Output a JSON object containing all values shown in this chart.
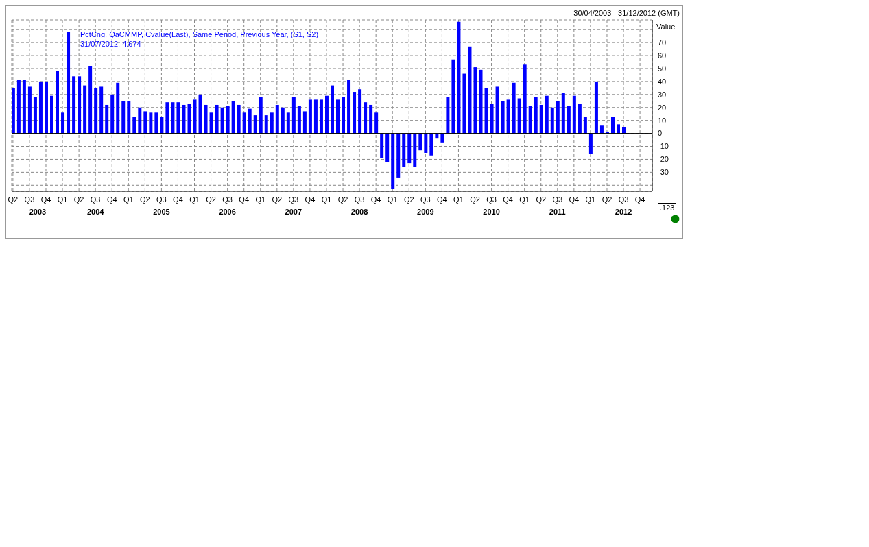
{
  "chart_data": {
    "type": "bar",
    "subtitle": "30/04/2003 - 31/12/2012 (GMT)",
    "ylabel": "Value",
    "x": [
      "2003-04",
      "2003-05",
      "2003-06",
      "2003-07",
      "2003-08",
      "2003-09",
      "2003-10",
      "2003-11",
      "2003-12",
      "2004-01",
      "2004-02",
      "2004-03",
      "2004-04",
      "2004-05",
      "2004-06",
      "2004-07",
      "2004-08",
      "2004-09",
      "2004-10",
      "2004-11",
      "2004-12",
      "2005-01",
      "2005-02",
      "2005-03",
      "2005-04",
      "2005-05",
      "2005-06",
      "2005-07",
      "2005-08",
      "2005-09",
      "2005-10",
      "2005-11",
      "2005-12",
      "2006-01",
      "2006-02",
      "2006-03",
      "2006-04",
      "2006-05",
      "2006-06",
      "2006-07",
      "2006-08",
      "2006-09",
      "2006-10",
      "2006-11",
      "2006-12",
      "2007-01",
      "2007-02",
      "2007-03",
      "2007-04",
      "2007-05",
      "2007-06",
      "2007-07",
      "2007-08",
      "2007-09",
      "2007-10",
      "2007-11",
      "2007-12",
      "2008-01",
      "2008-02",
      "2008-03",
      "2008-04",
      "2008-05",
      "2008-06",
      "2008-07",
      "2008-08",
      "2008-09",
      "2008-10",
      "2008-11",
      "2008-12",
      "2009-01",
      "2009-02",
      "2009-03",
      "2009-04",
      "2009-05",
      "2009-06",
      "2009-07",
      "2009-08",
      "2009-09",
      "2009-10",
      "2009-11",
      "2009-12",
      "2010-01",
      "2010-02",
      "2010-03",
      "2010-04",
      "2010-05",
      "2010-06",
      "2010-07",
      "2010-08",
      "2010-09",
      "2010-10",
      "2010-11",
      "2010-12",
      "2011-01",
      "2011-02",
      "2011-03",
      "2011-04",
      "2011-05",
      "2011-06",
      "2011-07",
      "2011-08",
      "2011-09",
      "2011-10",
      "2011-11",
      "2011-12",
      "2012-01",
      "2012-02",
      "2012-03",
      "2012-04",
      "2012-05",
      "2012-06",
      "2012-07"
    ],
    "series": [
      {
        "name": "PctCng, QaCMMP, Cvalue(Last), Same Period, Previous Year, (S1, S2)",
        "color": "#0000ff",
        "values": [
          35,
          41,
          41,
          36,
          28,
          40,
          40,
          29,
          48,
          16,
          78,
          44,
          44,
          37,
          52,
          35,
          36,
          22,
          30,
          39,
          25,
          25,
          13,
          20,
          17,
          16,
          16,
          13,
          24,
          24,
          24,
          22,
          23,
          26,
          30,
          22,
          16,
          22,
          20,
          21,
          25,
          22,
          16,
          19,
          14,
          28,
          14,
          16,
          22,
          20,
          16,
          28,
          21,
          17,
          26,
          26,
          26,
          29,
          37,
          26,
          28,
          41,
          32,
          34,
          24,
          22,
          16,
          -19,
          -22,
          -43,
          -34,
          -26,
          -23,
          -26,
          -13,
          -15,
          -17,
          -4,
          -7,
          28,
          57,
          86,
          46,
          67,
          51,
          49,
          35,
          23,
          36,
          25,
          26,
          39,
          27,
          53,
          21,
          28,
          22,
          29,
          20,
          25,
          31,
          21,
          29,
          23,
          13,
          -16,
          40,
          6,
          1,
          13,
          7,
          4.674
        ]
      }
    ],
    "xlim": [
      "2003-03-24",
      "2012-12-08"
    ],
    "xticks": [
      {
        "value": "2003-04",
        "label": "Q2"
      },
      {
        "value": "2003-07",
        "label": "Q3"
      },
      {
        "value": "2003-10",
        "label": "Q4"
      },
      {
        "value": "2004-01",
        "label": "Q1"
      },
      {
        "value": "2004-04",
        "label": "Q2"
      },
      {
        "value": "2004-07",
        "label": "Q3"
      },
      {
        "value": "2004-10",
        "label": "Q4"
      },
      {
        "value": "2005-01",
        "label": "Q1"
      },
      {
        "value": "2005-04",
        "label": "Q2"
      },
      {
        "value": "2005-07",
        "label": "Q3"
      },
      {
        "value": "2005-10",
        "label": "Q4"
      },
      {
        "value": "2006-01",
        "label": "Q1"
      },
      {
        "value": "2006-04",
        "label": "Q2"
      },
      {
        "value": "2006-07",
        "label": "Q3"
      },
      {
        "value": "2006-10",
        "label": "Q4"
      },
      {
        "value": "2007-01",
        "label": "Q1"
      },
      {
        "value": "2007-04",
        "label": "Q2"
      },
      {
        "value": "2007-07",
        "label": "Q3"
      },
      {
        "value": "2007-10",
        "label": "Q4"
      },
      {
        "value": "2008-01",
        "label": "Q1"
      },
      {
        "value": "2008-04",
        "label": "Q2"
      },
      {
        "value": "2008-07",
        "label": "Q3"
      },
      {
        "value": "2008-10",
        "label": "Q4"
      },
      {
        "value": "2009-01",
        "label": "Q1"
      },
      {
        "value": "2009-04",
        "label": "Q2"
      },
      {
        "value": "2009-07",
        "label": "Q3"
      },
      {
        "value": "2009-10",
        "label": "Q4"
      },
      {
        "value": "2010-01",
        "label": "Q1"
      },
      {
        "value": "2010-04",
        "label": "Q2"
      },
      {
        "value": "2010-07",
        "label": "Q3"
      },
      {
        "value": "2010-10",
        "label": "Q4"
      },
      {
        "value": "2011-01",
        "label": "Q1"
      },
      {
        "value": "2011-04",
        "label": "Q2"
      },
      {
        "value": "2011-07",
        "label": "Q3"
      },
      {
        "value": "2011-10",
        "label": "Q4"
      },
      {
        "value": "2012-01",
        "label": "Q1"
      },
      {
        "value": "2012-04",
        "label": "Q2"
      },
      {
        "value": "2012-07",
        "label": "Q3"
      },
      {
        "value": "2012-10",
        "label": "Q4"
      }
    ],
    "ylim": [
      -44.6,
      87.5
    ],
    "yticks": [
      {
        "value": -40,
        "label": null
      },
      -30,
      -20,
      -10,
      0,
      10,
      20,
      30,
      40,
      50,
      60,
      70,
      {
        "value": 80,
        "label": null
      }
    ],
    "annotations": [
      "31/07/2012, 4.674",
      ".123",
      "2003",
      "2004",
      "2005",
      "2006",
      "2007",
      "2008",
      "2009",
      "2010",
      "2011",
      "2012"
    ],
    "grid": true,
    "legend": "top left"
  }
}
